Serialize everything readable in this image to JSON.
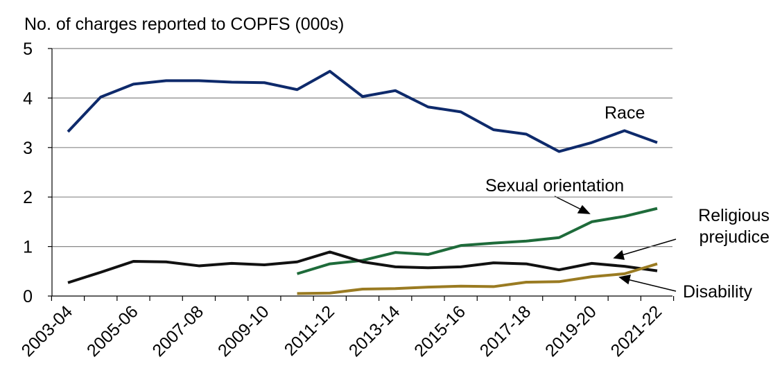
{
  "chart_data": {
    "type": "line",
    "title": "No. of charges reported to COPFS (000s)",
    "categories": [
      "2003-04",
      null,
      "2005-06",
      null,
      "2007-08",
      null,
      "2009-10",
      null,
      "2011-12",
      null,
      "2013-14",
      null,
      "2015-16",
      null,
      "2017-18",
      null,
      "2019-20",
      null,
      "2021-22"
    ],
    "series": [
      {
        "name": "Race",
        "color": "#0e2a6b",
        "values": [
          3.32,
          4.02,
          4.28,
          4.35,
          4.35,
          4.32,
          4.31,
          4.17,
          4.54,
          4.03,
          4.15,
          3.82,
          3.72,
          3.36,
          3.27,
          2.92,
          3.1,
          3.34,
          3.1
        ]
      },
      {
        "name": "Sexual orientation",
        "color": "#1e6b3a",
        "values": [
          null,
          null,
          null,
          null,
          null,
          null,
          null,
          0.45,
          0.65,
          0.72,
          0.88,
          0.84,
          1.02,
          1.07,
          1.11,
          1.18,
          1.5,
          1.61,
          1.77
        ]
      },
      {
        "name": "Religious prejudice",
        "color": "#111111",
        "values": [
          0.27,
          0.48,
          0.7,
          0.69,
          0.61,
          0.66,
          0.63,
          0.69,
          0.89,
          0.69,
          0.59,
          0.57,
          0.59,
          0.67,
          0.65,
          0.53,
          0.66,
          0.6,
          0.51
        ]
      },
      {
        "name": "Disability",
        "color": "#9a7b22",
        "values": [
          null,
          null,
          null,
          null,
          null,
          null,
          null,
          0.05,
          0.06,
          0.14,
          0.15,
          0.18,
          0.2,
          0.19,
          0.28,
          0.29,
          0.39,
          0.45,
          0.65
        ]
      }
    ],
    "ylim": [
      0,
      5
    ],
    "yticks": [
      0,
      1,
      2,
      3,
      4,
      5
    ],
    "grid": true
  }
}
